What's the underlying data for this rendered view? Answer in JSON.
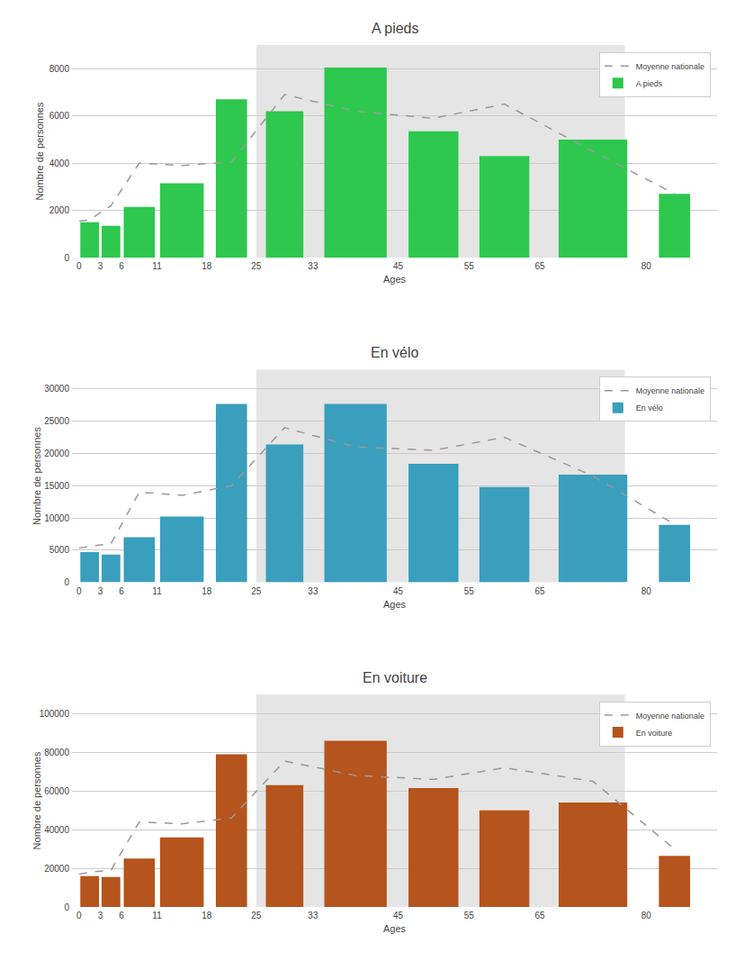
{
  "chart_data": [
    {
      "type": "bar",
      "title": "A pieds",
      "xlabel": "Ages",
      "ylabel": "Nombre de personnes",
      "xlim": [
        -1,
        90
      ],
      "xticks": [
        0,
        3,
        6,
        11,
        18,
        25,
        33,
        45,
        55,
        65,
        80
      ],
      "ylim": [
        0,
        9000
      ],
      "yticks": [
        0,
        2000,
        4000,
        6000,
        8000
      ],
      "grid": "y",
      "legend": "upper right",
      "bands": [
        {
          "x": [
            25,
            77
          ],
          "color": "#e5e5e5"
        }
      ],
      "series": [
        {
          "name": "Moyenne nationale",
          "type": "line",
          "line_style": "dashed",
          "color": "#999999",
          "x": [
            0,
            1.5,
            4.5,
            8.5,
            14.5,
            21.5,
            29,
            39,
            50,
            60,
            72.5,
            84
          ],
          "values": [
            1550,
            1600,
            2200,
            4000,
            3900,
            4050,
            6900,
            6200,
            5900,
            6500,
            4500,
            2700
          ]
        },
        {
          "name": "A pieds",
          "type": "bar",
          "color": "#2DC84D",
          "x": [
            1.5,
            4.5,
            8.5,
            14.5,
            21.5,
            29,
            39,
            50,
            60,
            72.5,
            84
          ],
          "widths": [
            3,
            3,
            5,
            7,
            5,
            6,
            10,
            8,
            8,
            11,
            5
          ],
          "values": [
            1500,
            1350,
            2150,
            3150,
            6700,
            6200,
            8050,
            5350,
            4300,
            5000,
            2700
          ]
        }
      ]
    },
    {
      "type": "bar",
      "title": "En vélo",
      "xlabel": "Ages",
      "ylabel": "Nombre de personnes",
      "xlim": [
        -1,
        90
      ],
      "xticks": [
        0,
        3,
        6,
        11,
        18,
        25,
        33,
        45,
        55,
        65,
        80
      ],
      "ylim": [
        0,
        33000
      ],
      "yticks": [
        0,
        5000,
        10000,
        15000,
        20000,
        25000,
        30000
      ],
      "grid": "y",
      "legend": "upper right",
      "bands": [
        {
          "x": [
            25,
            77
          ],
          "color": "#e5e5e5"
        }
      ],
      "series": [
        {
          "name": "Moyenne nationale",
          "type": "line",
          "line_style": "dashed",
          "color": "#999999",
          "x": [
            0,
            1.5,
            4.5,
            8.5,
            14.5,
            21.5,
            29,
            39,
            50,
            60,
            72.5,
            84
          ],
          "values": [
            5300,
            5600,
            6000,
            14000,
            13500,
            15000,
            24000,
            21000,
            20500,
            22500,
            16500,
            9000
          ]
        },
        {
          "name": "En vélo",
          "type": "bar",
          "color": "#3A9EBD",
          "x": [
            1.5,
            4.5,
            8.5,
            14.5,
            21.5,
            29,
            39,
            50,
            60,
            72.5,
            84
          ],
          "widths": [
            3,
            3,
            5,
            7,
            5,
            6,
            10,
            8,
            8,
            11,
            5
          ],
          "values": [
            4700,
            4300,
            7000,
            10200,
            27700,
            21400,
            27700,
            18400,
            14800,
            16700,
            8900
          ]
        }
      ]
    },
    {
      "type": "bar",
      "title": "En voiture",
      "xlabel": "Ages",
      "ylabel": "Nombre de personnes",
      "xlim": [
        -1,
        90
      ],
      "xticks": [
        0,
        3,
        6,
        11,
        18,
        25,
        33,
        45,
        55,
        65,
        80
      ],
      "ylim": [
        0,
        110000
      ],
      "yticks": [
        0,
        20000,
        40000,
        60000,
        80000,
        100000
      ],
      "grid": "y",
      "legend": "upper right",
      "bands": [
        {
          "x": [
            25,
            77
          ],
          "color": "#e5e5e5"
        }
      ],
      "series": [
        {
          "name": "Moyenne nationale",
          "type": "line",
          "line_style": "dashed",
          "color": "#999999",
          "x": [
            0,
            1.5,
            4.5,
            8.5,
            14.5,
            21.5,
            29,
            39,
            50,
            60,
            72.5,
            84
          ],
          "values": [
            17000,
            18000,
            19000,
            44000,
            43000,
            46000,
            75500,
            68000,
            66000,
            72000,
            65000,
            30000
          ]
        },
        {
          "name": "En voiture",
          "type": "bar",
          "color": "#B5541C",
          "x": [
            1.5,
            4.5,
            8.5,
            14.5,
            21.5,
            29,
            39,
            50,
            60,
            72.5,
            84
          ],
          "widths": [
            3,
            3,
            5,
            7,
            5,
            6,
            10,
            8,
            8,
            11,
            5
          ],
          "values": [
            16000,
            15500,
            25000,
            36000,
            79000,
            63000,
            86000,
            61500,
            50000,
            54000,
            26500
          ]
        }
      ]
    }
  ]
}
